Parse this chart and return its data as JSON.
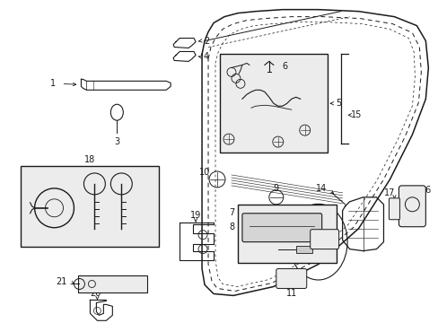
{
  "bg_color": "#ffffff",
  "line_color": "#1a1a1a",
  "box_bg": "#ececec",
  "fig_width": 4.89,
  "fig_height": 3.6,
  "dpi": 100
}
